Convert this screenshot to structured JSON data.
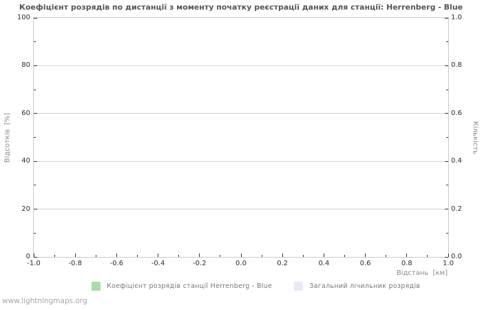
{
  "title": "Коефіцієнт розрядів по дистанції з моменту початку реєстрації даних для станції: Herrenberg - Blue",
  "axes": {
    "left": {
      "label": "Відсотків  [%]",
      "tick_labels": [
        "0",
        "20",
        "40",
        "60",
        "80",
        "100"
      ]
    },
    "right": {
      "label": "Кількість",
      "tick_labels": [
        "0.0",
        "0.2",
        "0.4",
        "0.6",
        "0.8",
        "1.0"
      ]
    },
    "bottom": {
      "label": "Відстань  [км]",
      "tick_labels": [
        "-1.0",
        "-0.8",
        "-0.6",
        "-0.4",
        "-0.2",
        "0.0",
        "0.2",
        "0.4",
        "0.6",
        "0.8",
        "1.0"
      ]
    }
  },
  "legend": {
    "items": [
      {
        "label": "Коефіцієнт розрядів станції Herrenberg - Blue",
        "color": "#a9dcaa"
      },
      {
        "label": "Загальний лічильник розрядів",
        "color": "#e9e9f8"
      }
    ]
  },
  "footer": {
    "link": "www.lightningmaps.org"
  },
  "colors": {
    "background": "#ffffff",
    "grid": "#d2d2d2",
    "plot_border": "#c9c9c9",
    "tick_mark": "#333333",
    "tick_label": "#2b2b2b",
    "title_text": "#555555",
    "axis_title_text": "#8a8a8a",
    "legend_text": "#777777",
    "footer_text": "#a6a6a6"
  },
  "chart_data": {
    "type": "line",
    "title": "Коефіцієнт розрядів по дистанції з моменту початку реєстрації даних для станції: Herrenberg - Blue",
    "xlabel": "Відстань [км]",
    "ylabel": "Відсотків [%]",
    "ylabel_right": "Кількість",
    "xlim": [
      -1.0,
      1.0
    ],
    "ylim": [
      0,
      100
    ],
    "ylim_right": [
      0.0,
      1.0
    ],
    "x_major_ticks": [
      -1.0,
      -0.8,
      -0.6,
      -0.4,
      -0.2,
      0.0,
      0.2,
      0.4,
      0.6,
      0.8,
      1.0
    ],
    "y_major_ticks_left": [
      0,
      20,
      40,
      60,
      80,
      100
    ],
    "y_major_ticks_right": [
      0.0,
      0.2,
      0.4,
      0.6,
      0.8,
      1.0
    ],
    "minor_ticks_per_interval": 1,
    "grid": "horizontal",
    "legend_position": "bottom",
    "series": [
      {
        "name": "Коефіцієнт розрядів станції Herrenberg - Blue",
        "color": "#a9dcaa",
        "axis": "left",
        "x": [],
        "y": []
      },
      {
        "name": "Загальний лічильник розрядів",
        "color": "#e9e9f8",
        "axis": "right",
        "x": [],
        "y": []
      }
    ]
  }
}
